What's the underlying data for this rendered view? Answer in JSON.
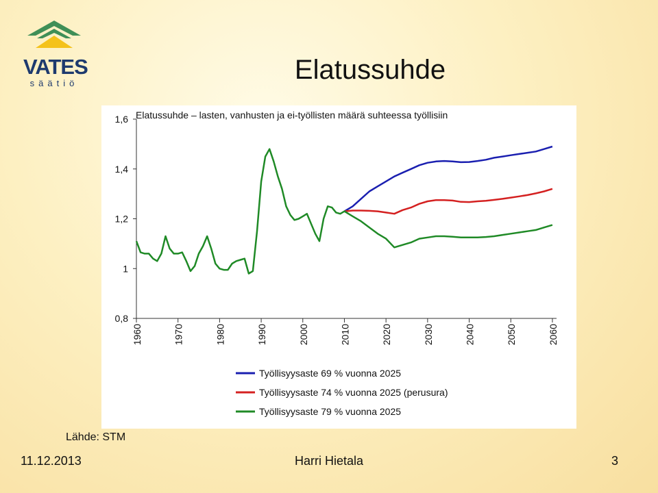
{
  "logo": {
    "name": "VATES",
    "sub": "säätiö",
    "colors": {
      "green": "#3f8f57",
      "yellow": "#f4c21b",
      "navy": "#1e3a6e"
    }
  },
  "slide": {
    "title": "Elatussuhde"
  },
  "source_note": "Lähde: STM",
  "footer": {
    "date": "11.12.2013",
    "author": "Harri Hietala",
    "page": "3"
  },
  "chart_data": {
    "type": "line",
    "title": "Elatussuhde – lasten, vanhusten ja ei-työllisten määrä suhteessa työllisiin",
    "xlim": [
      1960,
      2061
    ],
    "ylim": [
      0.8,
      1.6
    ],
    "x_ticks": [
      1960,
      1970,
      1980,
      1990,
      2000,
      2010,
      2020,
      2030,
      2040,
      2050,
      2060
    ],
    "y_ticks": [
      {
        "value": 0.8,
        "label": "0,8"
      },
      {
        "value": 1.0,
        "label": "1"
      },
      {
        "value": 1.2,
        "label": "1,2"
      },
      {
        "value": 1.4,
        "label": "1,4"
      },
      {
        "value": 1.6,
        "label": "1,6"
      }
    ],
    "grid": false,
    "legend_position": "bottom",
    "series": [
      {
        "name": "Työllisyysaste 69 % vuonna 2025",
        "color": "#1a1fb0",
        "x": [
          2010,
          2012,
          2014,
          2016,
          2018,
          2020,
          2022,
          2024,
          2026,
          2028,
          2030,
          2032,
          2034,
          2036,
          2038,
          2040,
          2042,
          2044,
          2046,
          2048,
          2050,
          2052,
          2054,
          2056,
          2058,
          2060
        ],
        "y": [
          1.23,
          1.25,
          1.28,
          1.31,
          1.33,
          1.35,
          1.37,
          1.385,
          1.4,
          1.415,
          1.425,
          1.43,
          1.432,
          1.43,
          1.427,
          1.428,
          1.432,
          1.437,
          1.445,
          1.45,
          1.455,
          1.46,
          1.465,
          1.47,
          1.48,
          1.49
        ]
      },
      {
        "name": "Työllisyysaste 74 % vuonna 2025 (perusura)",
        "color": "#d42020",
        "x": [
          2010,
          2012,
          2014,
          2016,
          2018,
          2020,
          2022,
          2024,
          2026,
          2028,
          2030,
          2032,
          2034,
          2036,
          2038,
          2040,
          2042,
          2044,
          2046,
          2048,
          2050,
          2052,
          2054,
          2056,
          2058,
          2060
        ],
        "y": [
          1.23,
          1.233,
          1.233,
          1.232,
          1.23,
          1.225,
          1.22,
          1.235,
          1.245,
          1.26,
          1.27,
          1.275,
          1.275,
          1.273,
          1.268,
          1.267,
          1.27,
          1.272,
          1.276,
          1.28,
          1.285,
          1.29,
          1.295,
          1.302,
          1.31,
          1.32
        ]
      },
      {
        "name": "Työllisyysaste 79 % vuonna 2025",
        "color": "#1f8a26",
        "x": [
          1960,
          1961,
          1962,
          1963,
          1964,
          1965,
          1966,
          1967,
          1968,
          1969,
          1970,
          1971,
          1972,
          1973,
          1974,
          1975,
          1976,
          1977,
          1978,
          1979,
          1980,
          1981,
          1982,
          1983,
          1984,
          1985,
          1986,
          1987,
          1988,
          1989,
          1990,
          1991,
          1992,
          1993,
          1994,
          1995,
          1996,
          1997,
          1998,
          1999,
          2000,
          2001,
          2002,
          2003,
          2004,
          2005,
          2006,
          2007,
          2008,
          2009,
          2010,
          2012,
          2014,
          2016,
          2018,
          2020,
          2022,
          2024,
          2026,
          2028,
          2030,
          2032,
          2034,
          2036,
          2038,
          2040,
          2042,
          2044,
          2046,
          2048,
          2050,
          2052,
          2054,
          2056,
          2058,
          2060
        ],
        "y": [
          1.11,
          1.065,
          1.06,
          1.06,
          1.04,
          1.03,
          1.06,
          1.13,
          1.08,
          1.06,
          1.06,
          1.065,
          1.03,
          0.99,
          1.01,
          1.06,
          1.09,
          1.13,
          1.08,
          1.02,
          1.0,
          0.995,
          0.995,
          1.02,
          1.03,
          1.035,
          1.04,
          0.98,
          0.99,
          1.15,
          1.35,
          1.45,
          1.48,
          1.43,
          1.37,
          1.32,
          1.25,
          1.215,
          1.195,
          1.2,
          1.21,
          1.22,
          1.18,
          1.14,
          1.11,
          1.2,
          1.25,
          1.245,
          1.225,
          1.22,
          1.23,
          1.21,
          1.19,
          1.165,
          1.14,
          1.12,
          1.085,
          1.095,
          1.105,
          1.12,
          1.125,
          1.13,
          1.13,
          1.128,
          1.125,
          1.125,
          1.125,
          1.127,
          1.13,
          1.135,
          1.14,
          1.145,
          1.15,
          1.155,
          1.165,
          1.175
        ]
      }
    ]
  }
}
